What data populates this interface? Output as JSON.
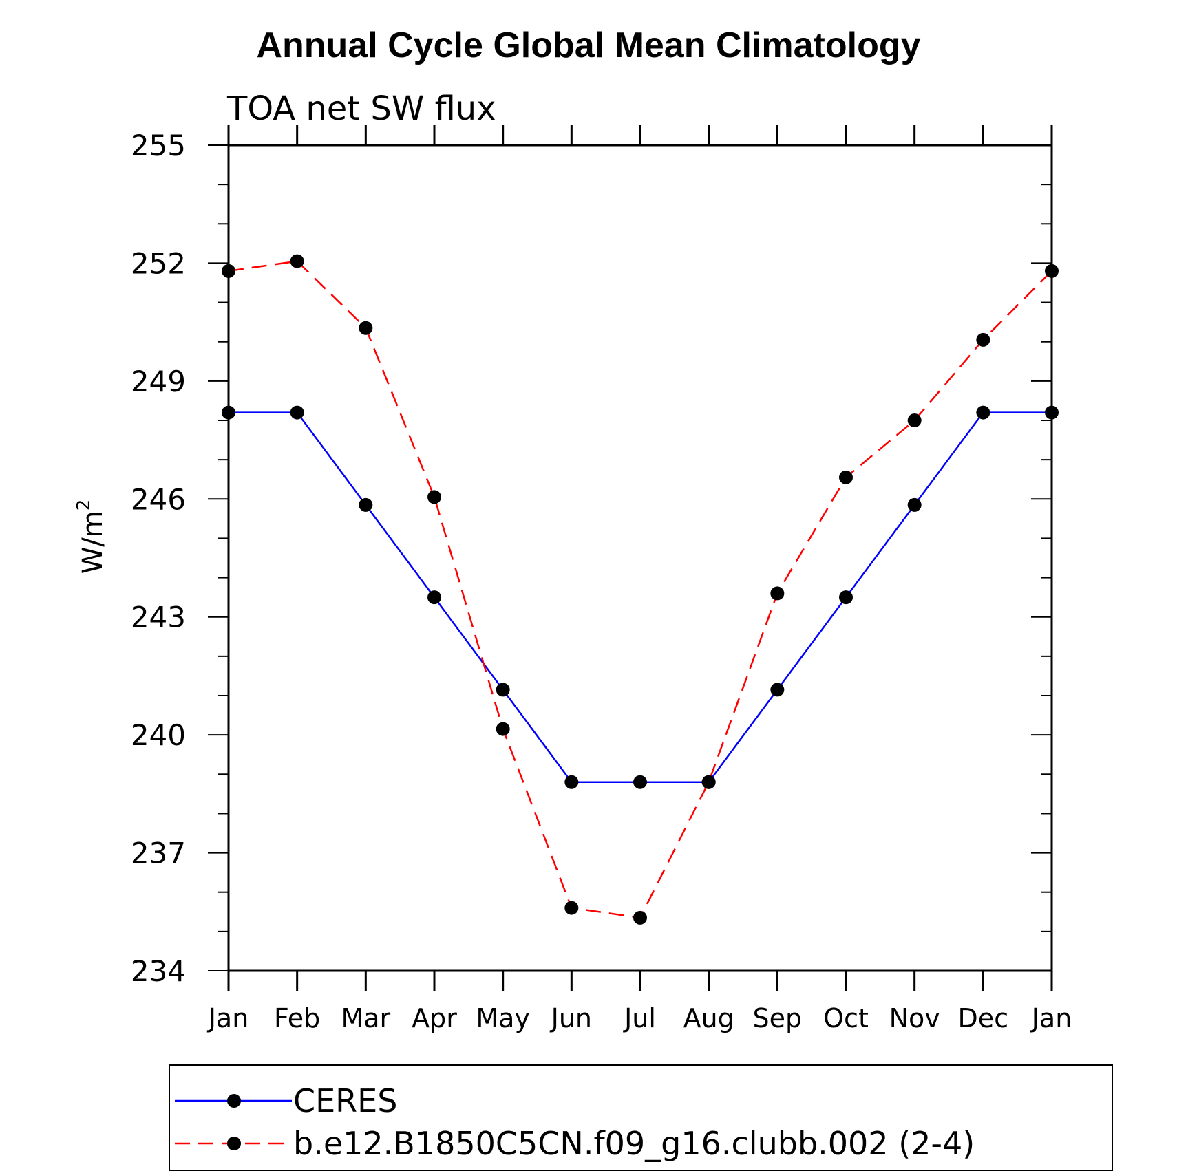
{
  "chart_data": {
    "type": "line",
    "title": "Annual Cycle Global Mean Climatology",
    "subtitle": "TOA net SW flux",
    "ylabel": "W/m",
    "ylabel_superscript": "2",
    "ylim": [
      234,
      255
    ],
    "y_ticks": [
      "234",
      "237",
      "240",
      "243",
      "246",
      "249",
      "252",
      "255"
    ],
    "categories": [
      "Jan",
      "Feb",
      "Mar",
      "Apr",
      "May",
      "Jun",
      "Jul",
      "Aug",
      "Sep",
      "Oct",
      "Nov",
      "Dec",
      "Jan"
    ],
    "series": [
      {
        "name": "CERES",
        "color": "#0000ff",
        "dash": "solid",
        "marker": "circle",
        "values": [
          248.2,
          248.2,
          245.85,
          243.5,
          241.15,
          238.8,
          238.8,
          238.8,
          241.15,
          243.5,
          245.85,
          248.2,
          248.2
        ]
      },
      {
        "name": "b.e12.B1850C5CN.f09_g16.clubb.002 (2-4)",
        "color": "#ff0000",
        "dash": "dashed",
        "marker": "circle",
        "values": [
          251.8,
          252.05,
          250.35,
          246.05,
          240.15,
          235.6,
          235.35,
          238.8,
          243.6,
          246.55,
          248.0,
          250.05,
          251.8
        ]
      }
    ],
    "grid": false,
    "legend_position": "bottom"
  }
}
